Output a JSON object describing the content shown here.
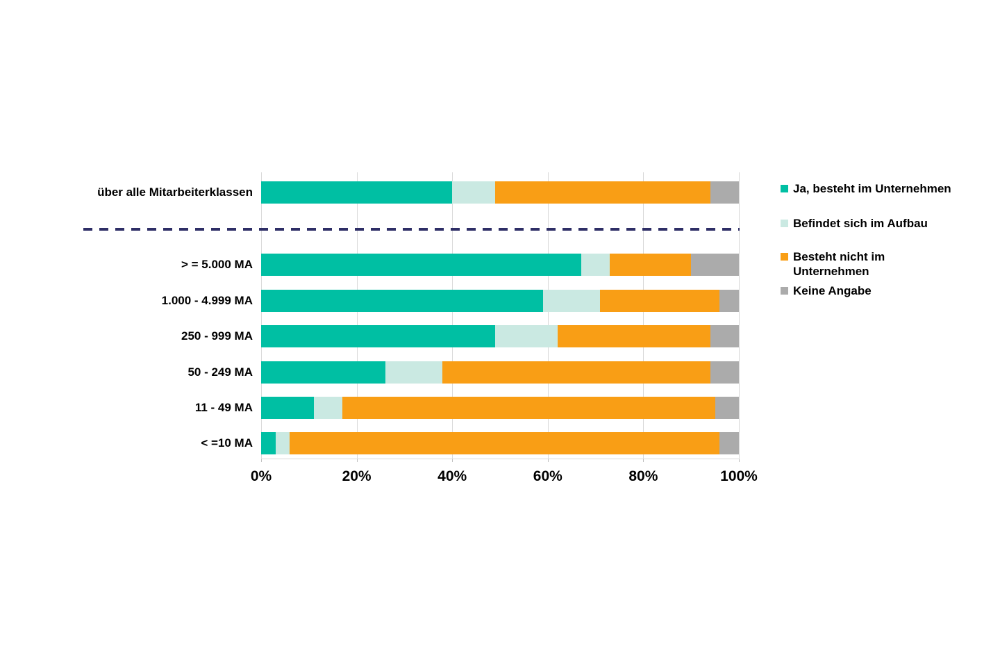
{
  "chart_data": {
    "type": "bar",
    "orientation": "horizontal-stacked",
    "unit": "%",
    "title": "",
    "categories": [
      "über alle Mitarbeiterklassen",
      "> = 5.000 MA",
      "1.000 - 4.999 MA",
      "250 - 999 MA",
      "50 - 249 MA",
      "11 - 49 MA",
      "< =10 MA"
    ],
    "series": [
      {
        "name": "Ja, besteht im Unternehmen",
        "color": "#00bfa3",
        "values": [
          40,
          67,
          59,
          49,
          26,
          11,
          3
        ]
      },
      {
        "name": "Befindet sich im Aufbau",
        "color": "#cae9e2",
        "values": [
          9,
          6,
          12,
          13,
          12,
          6,
          3
        ]
      },
      {
        "name": "Besteht nicht im Unternehmen",
        "color": "#f99e15",
        "values": [
          45,
          17,
          25,
          32,
          56,
          78,
          90
        ]
      },
      {
        "name": "Keine Angabe",
        "color": "#ababab",
        "values": [
          6,
          10,
          4,
          6,
          6,
          5,
          4
        ]
      }
    ],
    "x_axis": {
      "min": 0,
      "max": 100,
      "tick_labels": [
        "0%",
        "20%",
        "40%",
        "60%",
        "80%",
        "100%"
      ],
      "grid": true,
      "gridline_color": "#d9d9d9"
    },
    "legend_position": "right",
    "separator": {
      "style": "dashed-line",
      "after_category_index": 0,
      "color": "#2e2e66"
    }
  }
}
